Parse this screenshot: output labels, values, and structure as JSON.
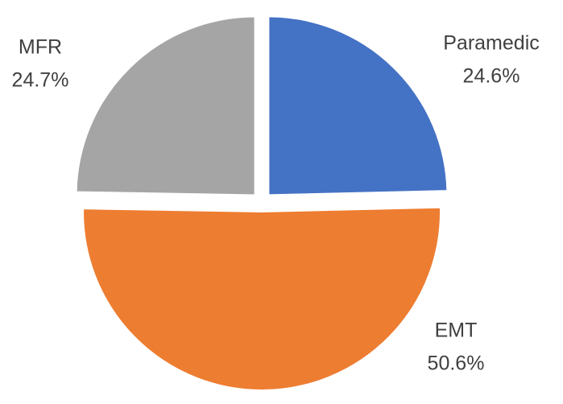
{
  "chart_data": {
    "type": "pie",
    "categories": [
      "Paramedic",
      "EMT",
      "MFR"
    ],
    "values": [
      24.6,
      50.6,
      24.7
    ],
    "value_labels": [
      "24.6%",
      "50.6%",
      "24.7%"
    ],
    "colors": [
      "#4472c4",
      "#ed7d31",
      "#a5a5a5"
    ]
  }
}
